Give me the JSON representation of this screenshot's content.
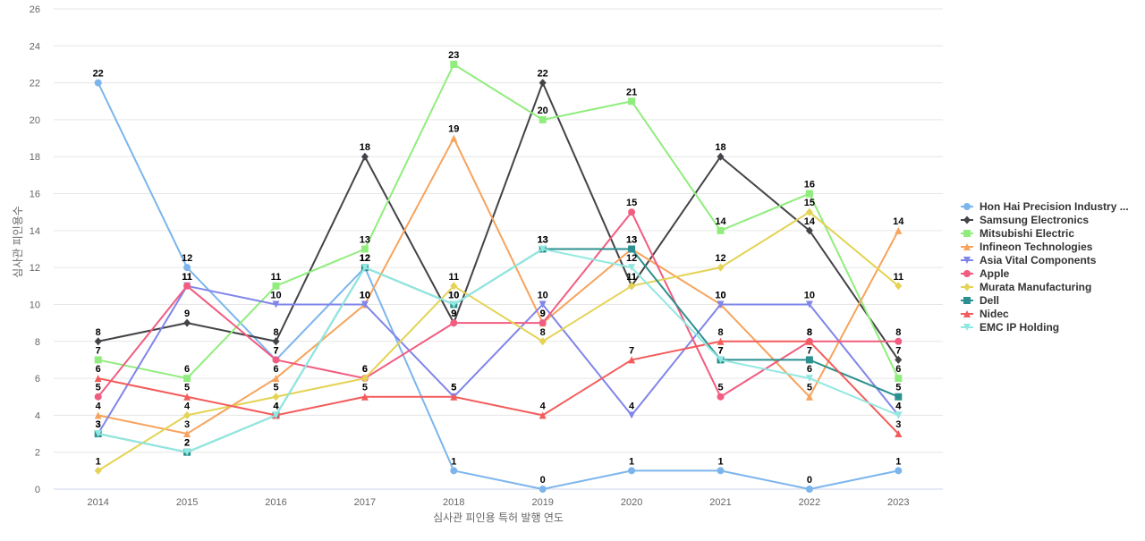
{
  "chart_data": {
    "type": "line",
    "xlabel": "심사관 피인용 특허 발행 연도",
    "ylabel": "심사관 피인용수",
    "ylim": [
      0,
      26
    ],
    "ytick_step": 2,
    "grid": true,
    "legend_position": "right",
    "x": [
      "2014",
      "2015",
      "2016",
      "2017",
      "2018",
      "2019",
      "2020",
      "2021",
      "2022",
      "2023"
    ],
    "series": [
      {
        "name": "Hon Hai Precision Industry ...",
        "color": "#7cb5ec",
        "marker": "circle",
        "values": [
          22,
          12,
          7,
          12,
          1,
          0,
          1,
          1,
          0,
          1
        ]
      },
      {
        "name": "Samsung Electronics",
        "color": "#434348",
        "marker": "diamond",
        "values": [
          8,
          9,
          8,
          18,
          9,
          22,
          11,
          18,
          14,
          7
        ]
      },
      {
        "name": "Mitsubishi Electric",
        "color": "#90ed7d",
        "marker": "square",
        "values": [
          7,
          6,
          11,
          13,
          23,
          20,
          21,
          14,
          16,
          6
        ]
      },
      {
        "name": "Infineon Technologies",
        "color": "#f7a35c",
        "marker": "triangle",
        "values": [
          4,
          3,
          6,
          10,
          19,
          9,
          13,
          10,
          5,
          14
        ]
      },
      {
        "name": "Asia Vital Components",
        "color": "#8085e9",
        "marker": "triangle-down",
        "values": [
          3,
          11,
          10,
          10,
          5,
          10,
          4,
          10,
          10,
          4
        ]
      },
      {
        "name": "Apple",
        "color": "#f15c80",
        "marker": "circle",
        "values": [
          5,
          11,
          7,
          6,
          9,
          9,
          15,
          5,
          8,
          8
        ]
      },
      {
        "name": "Murata Manufacturing",
        "color": "#e4d354",
        "marker": "diamond",
        "values": [
          1,
          4,
          5,
          6,
          11,
          8,
          11,
          12,
          15,
          11
        ]
      },
      {
        "name": "Dell",
        "color": "#2b908f",
        "marker": "square",
        "values": [
          3,
          2,
          4,
          12,
          10,
          13,
          13,
          7,
          7,
          5
        ]
      },
      {
        "name": "Nidec",
        "color": "#f45b5b",
        "marker": "triangle",
        "values": [
          6,
          5,
          4,
          5,
          5,
          4,
          7,
          8,
          8,
          3
        ]
      },
      {
        "name": "EMC IP Holding",
        "color": "#91e8e1",
        "marker": "triangle-down",
        "values": [
          3,
          2,
          4,
          12,
          10,
          13,
          12,
          7,
          6,
          4
        ]
      }
    ]
  }
}
